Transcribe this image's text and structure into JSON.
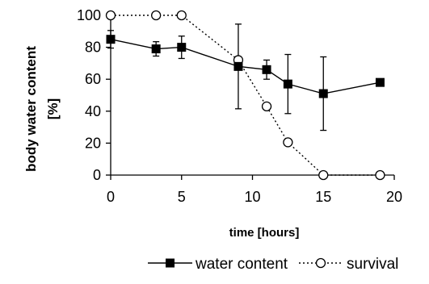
{
  "chart_data": {
    "type": "line",
    "xlabel": "time [hours]",
    "ylabel_line1": "body water content",
    "ylabel_line2": "[%]",
    "xlim": [
      0,
      20
    ],
    "ylim": [
      0,
      100
    ],
    "xticks": [
      "0",
      "5",
      "10",
      "15",
      "20"
    ],
    "yticks": [
      "0",
      "20",
      "40",
      "60",
      "80",
      "100"
    ],
    "grid": false,
    "legend_position": "bottom",
    "series": [
      {
        "name": "water content",
        "marker": "filled-square",
        "line": "solid",
        "color": "#000000",
        "x": [
          0,
          3.2,
          5,
          9,
          11,
          12.5,
          15,
          19
        ],
        "y": [
          85,
          79,
          80,
          68,
          66,
          57,
          51,
          58
        ],
        "error": [
          5.5,
          4.5,
          7,
          26.5,
          6,
          18.5,
          23,
          0
        ]
      },
      {
        "name": "survival",
        "marker": "open-circle",
        "line": "dotted",
        "color": "#000000",
        "x": [
          0,
          3.2,
          5,
          9,
          11,
          12.5,
          15,
          19
        ],
        "y": [
          100,
          100,
          100,
          72,
          43,
          20.5,
          0,
          0
        ]
      }
    ]
  }
}
